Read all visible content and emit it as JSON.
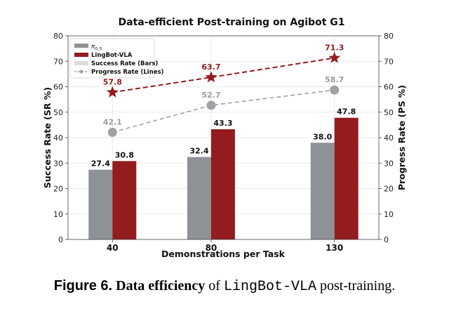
{
  "chart_data": {
    "type": "bar+line",
    "title": "Data-efficient Post-training on Agibot G1",
    "xlabel": "Demonstrations per Task",
    "ylabel_left": "Success Rate (SR %)",
    "ylabel_right": "Progress Rate (PS %)",
    "categories": [
      "40",
      "80",
      "130"
    ],
    "ylim": [
      0,
      80
    ],
    "yticks": [
      0,
      10,
      20,
      30,
      40,
      50,
      60,
      70,
      80
    ],
    "grid": true,
    "legend_position": "top-left",
    "bar_series": [
      {
        "name": "π",
        "name_sub": "0.5",
        "values": [
          27.4,
          32.4,
          38.0
        ],
        "labels": [
          "27.4",
          "32.4",
          "38.0"
        ],
        "color": "#8e9196"
      },
      {
        "name": "LingBot-VLA",
        "values": [
          30.8,
          43.3,
          47.8
        ],
        "labels": [
          "30.8",
          "43.3",
          "47.8"
        ],
        "color": "#931c1f"
      }
    ],
    "line_series": [
      {
        "series": "π0.5",
        "values": [
          42.1,
          52.7,
          58.7
        ],
        "labels": [
          "42.1",
          "52.7",
          "58.7"
        ],
        "color": "#9ea1a6",
        "marker": "circle",
        "style": "dashed"
      },
      {
        "series": "LingBot-VLA",
        "values": [
          57.8,
          63.7,
          71.3
        ],
        "labels": [
          "57.8",
          "63.7",
          "71.3"
        ],
        "color": "#931c1f",
        "marker": "star",
        "style": "dashed"
      }
    ],
    "legend": [
      "π0.5",
      "LingBot-VLA",
      "Success Rate (Bars)",
      "Progress Rate (Lines)"
    ]
  },
  "legend": {
    "pi_main": "π",
    "pi_sub": "0.5",
    "lingbot": "LingBot-VLA",
    "bars": "Success Rate (Bars)",
    "lines": "Progress Rate (Lines)"
  },
  "caption": {
    "figure": "Figure 6.",
    "bold": "Data efficiency",
    "of": " of ",
    "mono": "LingBot-VLA",
    "rest": " post-training."
  }
}
